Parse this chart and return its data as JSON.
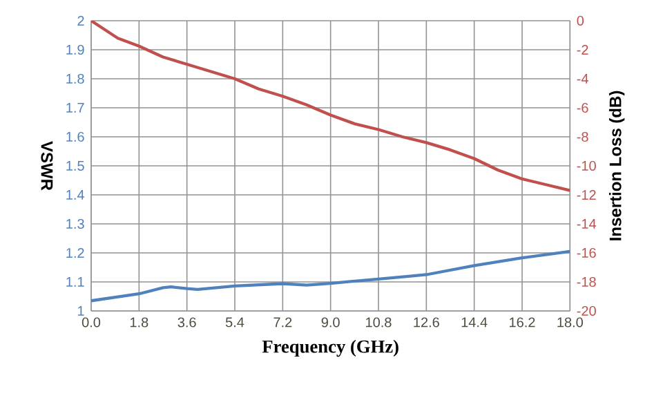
{
  "chart_data": {
    "type": "line",
    "xlabel": "Frequency (GHz)",
    "ylabel": "VSWR",
    "y2label": "Insertion Loss (dB)",
    "xlim": [
      0,
      18
    ],
    "xticks": [
      {
        "value": 0,
        "label": "0.0"
      },
      {
        "value": 1.8,
        "label": "1.8"
      },
      {
        "value": 3.6,
        "label": "3.6"
      },
      {
        "value": 5.4,
        "label": "5.4"
      },
      {
        "value": 7.2,
        "label": "7.2"
      },
      {
        "value": 9,
        "label": "9.0"
      },
      {
        "value": 10.8,
        "label": "10.8"
      },
      {
        "value": 12.6,
        "label": "12.6"
      },
      {
        "value": 14.4,
        "label": "14.4"
      },
      {
        "value": 16.2,
        "label": "16.2"
      },
      {
        "value": 18,
        "label": "18.0"
      }
    ],
    "ylim": [
      1,
      2
    ],
    "yticks": [
      1,
      1.1,
      1.2,
      1.3,
      1.4,
      1.5,
      1.6,
      1.7,
      1.8,
      1.9,
      2
    ],
    "y2lim": [
      -20,
      0
    ],
    "y2ticks": [
      -20,
      -18,
      -16,
      -14,
      -12,
      -10,
      -8,
      -6,
      -4,
      -2,
      0
    ],
    "grid": true,
    "series": [
      {
        "color": "#4f81bd",
        "axis": "y",
        "x": [
          0,
          1.8,
          2.7,
          3.0,
          3.6,
          4.0,
          5.4,
          7.2,
          8.1,
          9.0,
          10.8,
          12.0,
          12.6,
          14.4,
          16.2,
          18
        ],
        "values": [
          1.035,
          1.059,
          1.08,
          1.083,
          1.077,
          1.074,
          1.086,
          1.094,
          1.089,
          1.095,
          1.11,
          1.12,
          1.125,
          1.156,
          1.183,
          1.205
        ]
      },
      {
        "color": "#c0504d",
        "axis": "y2",
        "x": [
          0,
          1.0,
          1.8,
          2.7,
          3.6,
          4.5,
          5.4,
          6.3,
          7.2,
          8.1,
          9.0,
          9.9,
          10.8,
          11.7,
          12.6,
          13.5,
          14.4,
          15.3,
          16.2,
          17.1,
          18
        ],
        "values": [
          0,
          -1.2,
          -1.75,
          -2.5,
          -3.0,
          -3.5,
          -4.0,
          -4.7,
          -5.2,
          -5.8,
          -6.5,
          -7.1,
          -7.5,
          -8.0,
          -8.4,
          -8.9,
          -9.5,
          -10.3,
          -10.9,
          -11.3,
          -11.7
        ]
      }
    ]
  }
}
